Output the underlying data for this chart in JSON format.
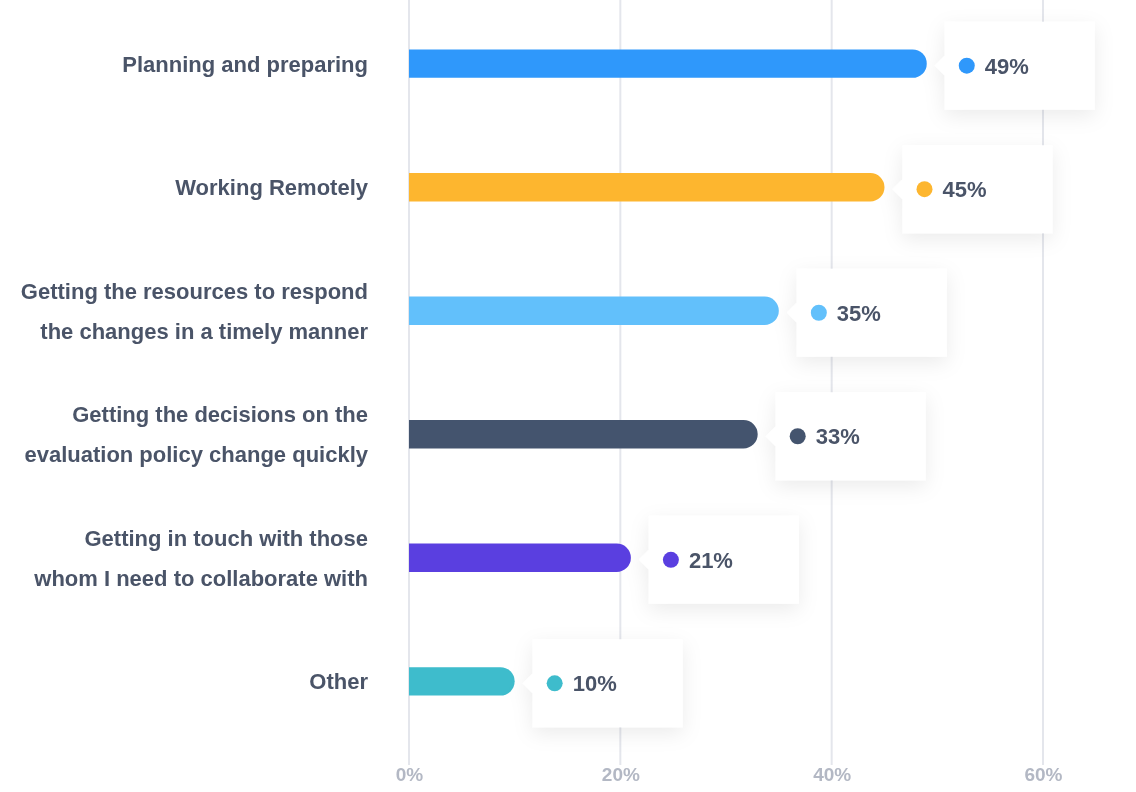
{
  "chart_data": {
    "type": "bar",
    "orientation": "horizontal",
    "categories": [
      "Planning and preparing",
      "Working Remotely",
      "Getting the resources to respond the changes in a timely manner",
      "Getting the decisions on the evaluation policy change quickly",
      "Getting in touch with those whom I need to collaborate with",
      "Other"
    ],
    "values": [
      49,
      45,
      35,
      33,
      21,
      10
    ],
    "colors": [
      "#2f98fb",
      "#fdb62f",
      "#62c0fb",
      "#44546e",
      "#5a3fe0",
      "#3ebccc"
    ],
    "value_labels": [
      "49%",
      "45%",
      "35%",
      "33%",
      "21%",
      "10%"
    ],
    "xlim": [
      0,
      60
    ],
    "xticks": [
      {
        "value": 0,
        "label": "0%"
      },
      {
        "value": 20,
        "label": "20%"
      },
      {
        "value": 40,
        "label": "40%"
      },
      {
        "value": 60,
        "label": "60%"
      }
    ],
    "grid": "x"
  }
}
